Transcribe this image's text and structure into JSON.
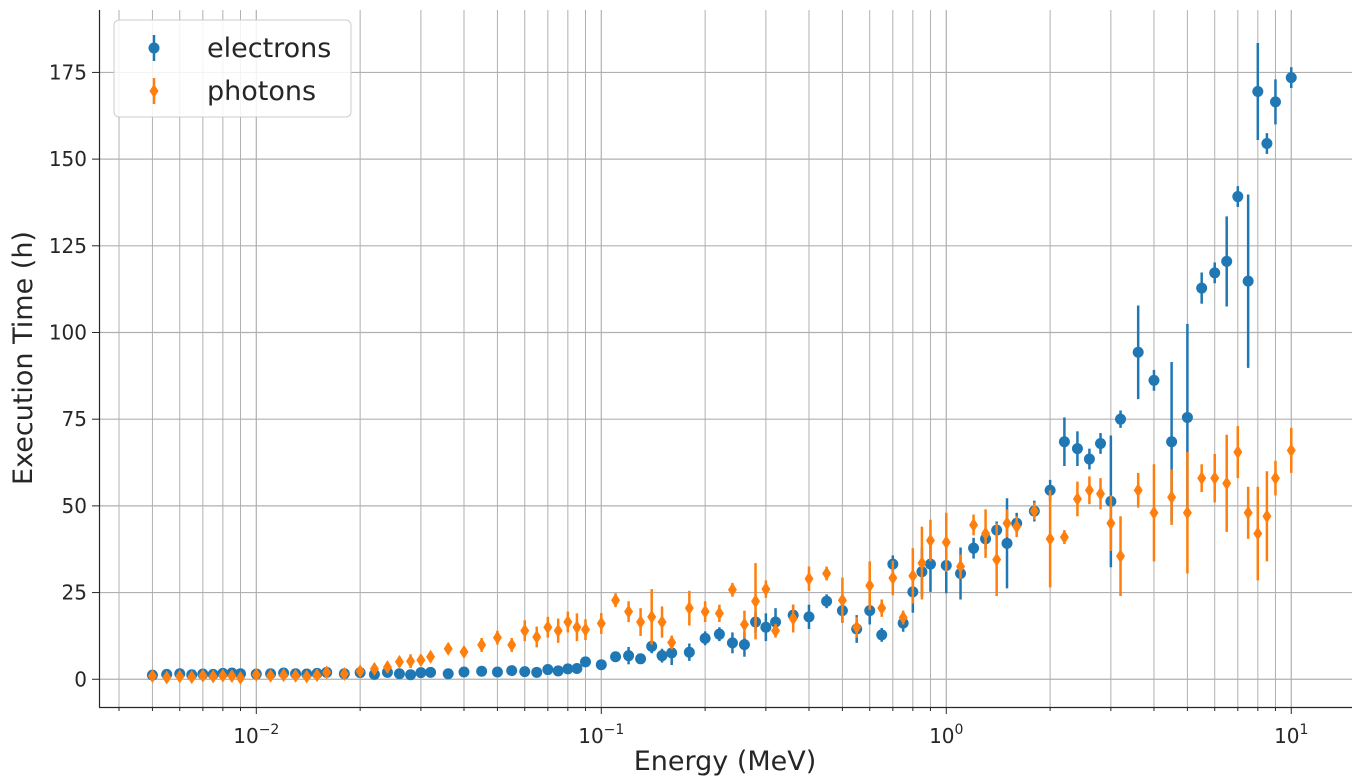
{
  "chart_data": {
    "type": "scatter",
    "title": "",
    "xlabel": "Energy (MeV)",
    "ylabel": "Execution Time (h)",
    "xscale": "log",
    "xlim": [
      0.0035,
      15
    ],
    "ylim": [
      -8,
      193
    ],
    "x_ticks": [
      {
        "value": 0.01,
        "base": "10",
        "exp": "−2"
      },
      {
        "value": 0.1,
        "base": "10",
        "exp": "−1"
      },
      {
        "value": 1,
        "base": "10",
        "exp": "0"
      },
      {
        "value": 10,
        "base": "10",
        "exp": "1"
      }
    ],
    "y_ticks": [
      0,
      25,
      50,
      75,
      100,
      125,
      150,
      175
    ],
    "grid": true,
    "legend_position": "top-left",
    "series": [
      {
        "name": "electrons",
        "color": "#1f77b4",
        "marker": "circle",
        "points": [
          [
            0.005,
            1.2,
            0.6
          ],
          [
            0.0055,
            1.4,
            0.5
          ],
          [
            0.006,
            1.6,
            0.5
          ],
          [
            0.0065,
            1.3,
            0.5
          ],
          [
            0.007,
            1.5,
            0.5
          ],
          [
            0.0075,
            1.4,
            0.5
          ],
          [
            0.008,
            1.7,
            0.6
          ],
          [
            0.0085,
            1.8,
            0.6
          ],
          [
            0.009,
            1.6,
            0.6
          ],
          [
            0.01,
            1.5,
            0.6
          ],
          [
            0.011,
            1.6,
            0.6
          ],
          [
            0.012,
            1.8,
            0.6
          ],
          [
            0.013,
            1.6,
            0.6
          ],
          [
            0.014,
            1.5,
            0.6
          ],
          [
            0.015,
            1.7,
            0.6
          ],
          [
            0.016,
            2.0,
            0.6
          ],
          [
            0.018,
            1.6,
            0.6
          ],
          [
            0.02,
            1.9,
            0.6
          ],
          [
            0.022,
            1.4,
            0.6
          ],
          [
            0.024,
            2.0,
            0.6
          ],
          [
            0.026,
            1.6,
            0.6
          ],
          [
            0.028,
            1.3,
            0.6
          ],
          [
            0.03,
            1.9,
            0.6
          ],
          [
            0.032,
            2.0,
            0.6
          ],
          [
            0.036,
            1.6,
            0.6
          ],
          [
            0.04,
            2.1,
            0.6
          ],
          [
            0.045,
            2.3,
            0.7
          ],
          [
            0.05,
            2.1,
            0.7
          ],
          [
            0.055,
            2.5,
            0.7
          ],
          [
            0.06,
            2.2,
            0.7
          ],
          [
            0.065,
            2.0,
            0.7
          ],
          [
            0.07,
            2.8,
            0.7
          ],
          [
            0.075,
            2.4,
            0.7
          ],
          [
            0.08,
            3.0,
            0.8
          ],
          [
            0.085,
            3.1,
            0.8
          ],
          [
            0.09,
            5.0,
            1.0
          ],
          [
            0.1,
            4.2,
            1.0
          ],
          [
            0.11,
            6.5,
            1.5
          ],
          [
            0.12,
            6.8,
            2.5
          ],
          [
            0.13,
            5.9,
            1.5
          ],
          [
            0.14,
            9.5,
            2.0
          ],
          [
            0.15,
            6.8,
            2.0
          ],
          [
            0.16,
            7.6,
            3.5
          ],
          [
            0.18,
            7.8,
            2.5
          ],
          [
            0.2,
            11.8,
            2.0
          ],
          [
            0.22,
            13.0,
            2.0
          ],
          [
            0.24,
            10.5,
            3.0
          ],
          [
            0.26,
            10.0,
            3.5
          ],
          [
            0.28,
            16.5,
            3.0
          ],
          [
            0.3,
            15.0,
            4.0
          ],
          [
            0.32,
            16.5,
            4.0
          ],
          [
            0.36,
            18.5,
            3.0
          ],
          [
            0.4,
            18.0,
            3.5
          ],
          [
            0.45,
            22.5,
            2.0
          ],
          [
            0.5,
            19.8,
            3.5
          ],
          [
            0.55,
            14.5,
            4.0
          ],
          [
            0.6,
            19.8,
            4.0
          ],
          [
            0.65,
            12.8,
            2.0
          ],
          [
            0.7,
            33.2,
            2.5
          ],
          [
            0.75,
            16.2,
            2.5
          ],
          [
            0.8,
            25.2,
            6.0
          ],
          [
            0.85,
            31.0,
            7.0
          ],
          [
            0.9,
            33.2,
            8.0
          ],
          [
            1.0,
            32.8,
            8.0
          ],
          [
            1.1,
            30.5,
            7.5
          ],
          [
            1.2,
            37.8,
            3.0
          ],
          [
            1.3,
            40.5,
            3.0
          ],
          [
            1.4,
            43.0,
            2.5
          ],
          [
            1.5,
            39.2,
            13.0
          ],
          [
            1.6,
            45.0,
            3.0
          ],
          [
            1.8,
            48.5,
            3.0
          ],
          [
            2.0,
            54.5,
            3.0
          ],
          [
            2.2,
            68.5,
            7.0
          ],
          [
            2.4,
            66.5,
            5.0
          ],
          [
            2.6,
            63.5,
            3.0
          ],
          [
            2.8,
            68.0,
            3.0
          ],
          [
            3.0,
            51.3,
            19.0
          ],
          [
            3.2,
            75.0,
            2.5
          ],
          [
            3.6,
            94.3,
            13.5
          ],
          [
            4.0,
            86.2,
            3.0
          ],
          [
            4.5,
            68.5,
            23.0
          ],
          [
            5.0,
            75.5,
            27.0
          ],
          [
            5.5,
            112.8,
            4.5
          ],
          [
            6.0,
            117.2,
            3.0
          ],
          [
            6.5,
            120.5,
            13.0
          ],
          [
            7.0,
            139.2,
            3.0
          ],
          [
            7.5,
            114.8,
            25.0
          ],
          [
            8.0,
            169.5,
            14.0
          ],
          [
            8.5,
            154.5,
            3.0
          ],
          [
            9.0,
            166.5,
            6.5
          ],
          [
            10.0,
            173.5,
            3.0
          ]
        ]
      },
      {
        "name": "photons",
        "color": "#ff7f0e",
        "marker": "diamond",
        "points": [
          [
            0.005,
            0.9,
            1.0
          ],
          [
            0.0055,
            0.5,
            1.0
          ],
          [
            0.006,
            0.8,
            1.2
          ],
          [
            0.0065,
            0.6,
            1.0
          ],
          [
            0.007,
            1.0,
            1.2
          ],
          [
            0.0075,
            0.8,
            1.0
          ],
          [
            0.008,
            1.0,
            1.2
          ],
          [
            0.0085,
            0.9,
            1.0
          ],
          [
            0.009,
            0.4,
            1.0
          ],
          [
            0.01,
            1.3,
            1.0
          ],
          [
            0.011,
            1.0,
            1.0
          ],
          [
            0.012,
            1.2,
            1.0
          ],
          [
            0.013,
            1.0,
            1.0
          ],
          [
            0.014,
            0.8,
            1.2
          ],
          [
            0.015,
            1.2,
            1.0
          ],
          [
            0.016,
            2.0,
            1.5
          ],
          [
            0.018,
            1.5,
            1.2
          ],
          [
            0.02,
            2.3,
            1.0
          ],
          [
            0.022,
            3.0,
            1.5
          ],
          [
            0.024,
            3.5,
            1.5
          ],
          [
            0.026,
            5.0,
            1.5
          ],
          [
            0.028,
            5.2,
            2.0
          ],
          [
            0.03,
            5.5,
            1.5
          ],
          [
            0.032,
            6.5,
            1.5
          ],
          [
            0.036,
            8.8,
            1.5
          ],
          [
            0.04,
            7.9,
            1.5
          ],
          [
            0.045,
            9.9,
            2.0
          ],
          [
            0.05,
            12.0,
            2.0
          ],
          [
            0.055,
            9.9,
            2.0
          ],
          [
            0.06,
            14.0,
            3.0
          ],
          [
            0.065,
            12.2,
            3.0
          ],
          [
            0.07,
            15.0,
            3.0
          ],
          [
            0.075,
            14.0,
            3.5
          ],
          [
            0.08,
            16.5,
            3.0
          ],
          [
            0.085,
            15.0,
            4.0
          ],
          [
            0.09,
            14.3,
            3.0
          ],
          [
            0.1,
            16.1,
            3.0
          ],
          [
            0.11,
            22.8,
            2.0
          ],
          [
            0.12,
            19.5,
            3.0
          ],
          [
            0.13,
            16.5,
            4.0
          ],
          [
            0.14,
            18.0,
            8.0
          ],
          [
            0.15,
            16.5,
            4.5
          ],
          [
            0.16,
            10.6,
            2.0
          ],
          [
            0.18,
            20.5,
            5.0
          ],
          [
            0.2,
            19.5,
            3.0
          ],
          [
            0.22,
            19.0,
            2.5
          ],
          [
            0.24,
            25.8,
            2.0
          ],
          [
            0.26,
            15.8,
            4.0
          ],
          [
            0.28,
            22.5,
            11.0
          ],
          [
            0.3,
            26.0,
            2.5
          ],
          [
            0.32,
            14.0,
            2.0
          ],
          [
            0.36,
            17.5,
            4.0
          ],
          [
            0.4,
            29.0,
            3.5
          ],
          [
            0.45,
            30.5,
            2.0
          ],
          [
            0.5,
            22.8,
            6.5
          ],
          [
            0.55,
            15.0,
            3.0
          ],
          [
            0.6,
            27.0,
            7.0
          ],
          [
            0.65,
            20.5,
            2.5
          ],
          [
            0.7,
            29.2,
            5.0
          ],
          [
            0.75,
            17.8,
            2.0
          ],
          [
            0.8,
            29.8,
            8.0
          ],
          [
            0.85,
            33.5,
            10.5
          ],
          [
            0.9,
            40.0,
            6.0
          ],
          [
            1.0,
            39.5,
            8.5
          ],
          [
            1.1,
            32.5,
            3.5
          ],
          [
            1.2,
            44.5,
            3.0
          ],
          [
            1.3,
            42.0,
            7.0
          ],
          [
            1.4,
            34.5,
            10.5
          ],
          [
            1.5,
            45.0,
            4.0
          ],
          [
            1.6,
            44.0,
            3.0
          ],
          [
            1.8,
            48.5,
            2.5
          ],
          [
            2.0,
            40.5,
            14.0
          ],
          [
            2.2,
            41.0,
            2.0
          ],
          [
            2.4,
            52.0,
            5.0
          ],
          [
            2.6,
            54.5,
            4.0
          ],
          [
            2.8,
            53.5,
            4.5
          ],
          [
            3.0,
            45.0,
            8.0
          ],
          [
            3.2,
            35.5,
            11.5
          ],
          [
            3.6,
            54.5,
            5.0
          ],
          [
            4.0,
            48.0,
            14.0
          ],
          [
            4.5,
            52.5,
            8.0
          ],
          [
            5.0,
            48.0,
            17.5
          ],
          [
            5.5,
            58.0,
            4.0
          ],
          [
            6.0,
            58.0,
            7.0
          ],
          [
            6.5,
            56.5,
            14.0
          ],
          [
            7.0,
            65.5,
            7.5
          ],
          [
            7.5,
            48.0,
            7.5
          ],
          [
            8.0,
            42.0,
            13.5
          ],
          [
            8.5,
            47.0,
            13.0
          ],
          [
            9.0,
            58.0,
            5.0
          ],
          [
            10.0,
            66.0,
            6.5
          ]
        ]
      }
    ]
  }
}
